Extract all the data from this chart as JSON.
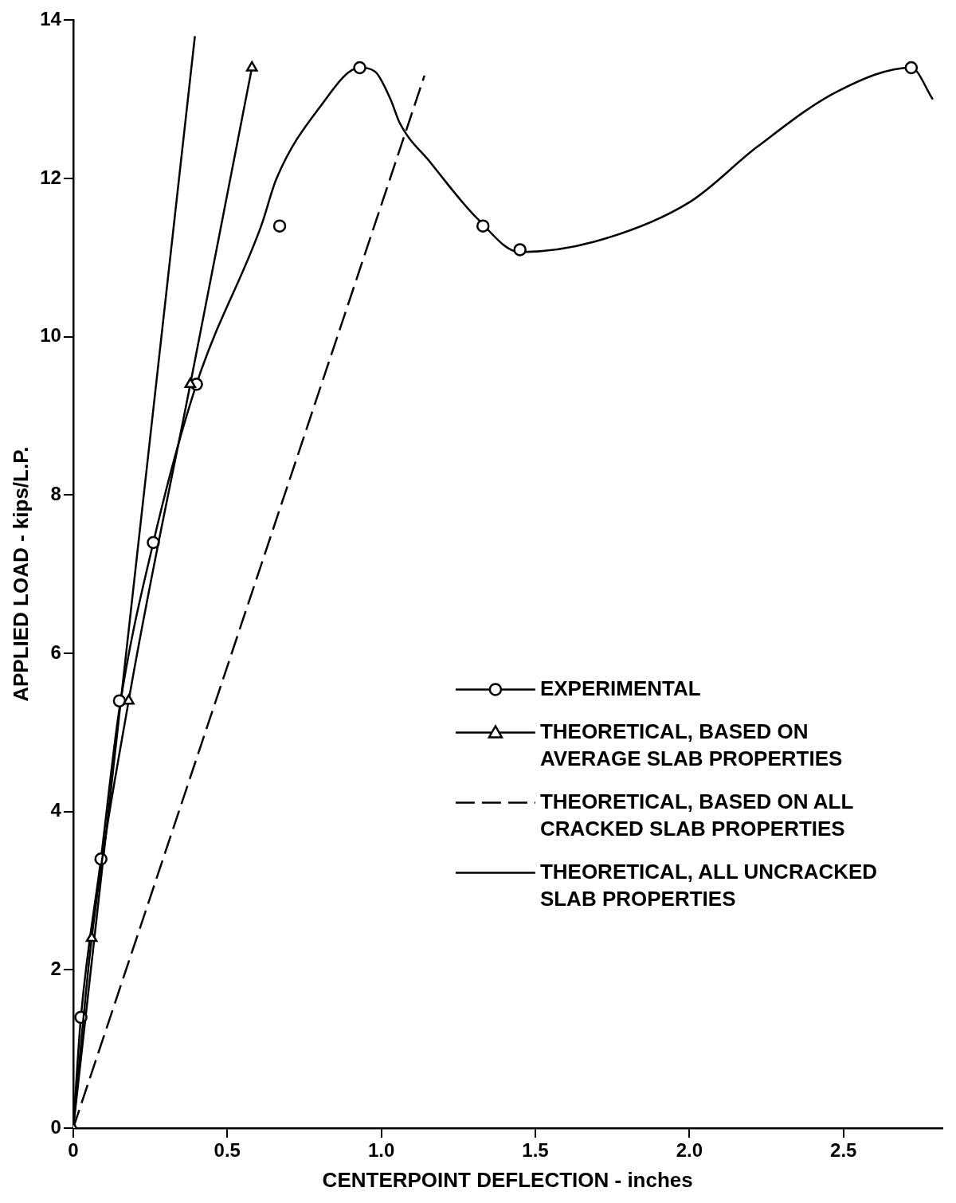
{
  "chart_data": {
    "type": "line",
    "xlabel": "CENTERPOINT DEFLECTION - inches",
    "ylabel": "APPLIED LOAD - kips/L.P.",
    "xlim": [
      0,
      2.82
    ],
    "xticks": [
      0,
      {
        "value": 0.5,
        "label": "0.5"
      },
      {
        "value": 1,
        "label": "1.0"
      },
      {
        "value": 1.5,
        "label": "1.5"
      },
      {
        "value": 2,
        "label": "2.0"
      },
      {
        "value": 2.5,
        "label": "2.5"
      }
    ],
    "ylim": [
      0,
      14
    ],
    "yticks": [
      0,
      2,
      4,
      6,
      8,
      10,
      12,
      14
    ],
    "grid": false,
    "legend": "right",
    "series": [
      {
        "name": "EXPERIMENTAL",
        "type": "scatter",
        "marker": "circle",
        "color": "#000000",
        "x": [
          0.025,
          0.09,
          0.15,
          0.26,
          0.4,
          0.67,
          0.93,
          1.33,
          1.45,
          2.72
        ],
        "values": [
          1.4,
          3.4,
          5.4,
          7.4,
          9.4,
          11.4,
          13.4,
          11.4,
          11.1,
          13.4
        ]
      },
      {
        "type": "line",
        "marker": "none",
        "line_style": "solid",
        "color": "#000000",
        "x": [
          0,
          0.025,
          0.09,
          0.15,
          0.26,
          0.4,
          0.61,
          0.66,
          0.8,
          0.93,
          0.98,
          1.03,
          1.06,
          1.16,
          1.31,
          1.45,
          1.69,
          2.0,
          2.22,
          2.48,
          2.72,
          2.79
        ],
        "values": [
          0,
          1.4,
          3.4,
          5.3,
          7.4,
          9.4,
          11.4,
          12,
          12.9,
          13.4,
          13.35,
          13,
          12.7,
          12.2,
          11.5,
          11.07,
          11.2,
          11.7,
          12.4,
          13.1,
          13.4,
          13
        ]
      },
      {
        "name": "THEORETICAL, BASED ON AVERAGE SLAB PROPERTIES",
        "type": "line",
        "marker": "triangle",
        "line_style": "solid",
        "color": "#000000",
        "x": [
          0,
          0.06,
          0.18,
          0.38,
          0.58
        ],
        "values": [
          0,
          2.4,
          5.4,
          9.4,
          13.4
        ]
      },
      {
        "name": "THEORETICAL, BASED ON ALL CRACKED SLAB PROPERTIES",
        "type": "line",
        "marker": "none",
        "line_style": "dashed",
        "color": "#000000",
        "x": [
          0,
          1.14
        ],
        "values": [
          0,
          13.3
        ]
      },
      {
        "name": "THEORETICAL, ALL UNCRACKED SLAB PROPERTIES",
        "type": "line",
        "marker": "none",
        "line_style": "solid",
        "color": "#000000",
        "x": [
          0,
          0.395
        ],
        "values": [
          0,
          13.8
        ]
      }
    ]
  }
}
